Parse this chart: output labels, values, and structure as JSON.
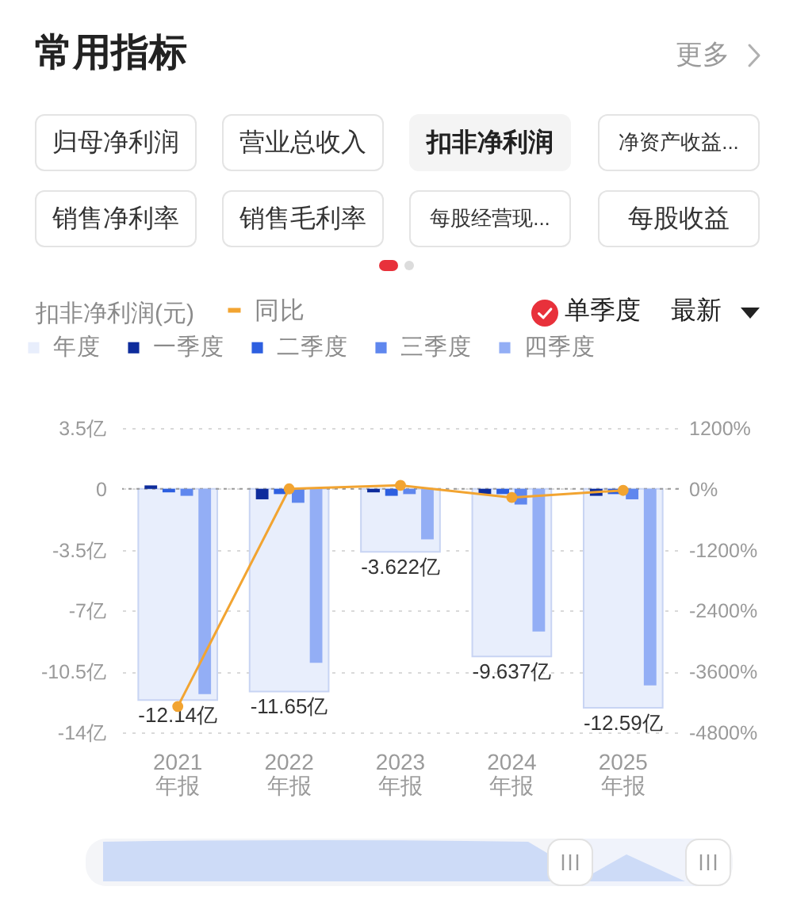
{
  "chart_data": {
    "type": "bar",
    "title": "常用指标",
    "ylabel": "扣非净利润(元)",
    "annotations": [
      "更多",
      "归母净利润",
      "营业总收入",
      "扣非净利润",
      "净资产收益...",
      "销售净利率",
      "销售毛利率",
      "每股经营现...",
      "每股收益",
      "单季度",
      "最新"
    ],
    "categories": [
      "2021\n年报",
      "2022\n年报",
      "2023\n年报",
      "2024\n年报",
      "2025\n年报"
    ],
    "series": [
      {
        "name": "年度",
        "color": "#e8eefc",
        "values": [
          -12.14,
          -11.65,
          -3.622,
          -9.637,
          -12.59
        ],
        "value_labels": [
          "-12.14亿",
          "-11.65亿",
          "-3.622亿",
          "-9.637亿",
          "-12.59亿"
        ]
      },
      {
        "name": "一季度",
        "color": "#0e2c9c",
        "values": [
          0.2,
          -0.6,
          -0.2,
          -0.3,
          -0.4
        ]
      },
      {
        "name": "二季度",
        "color": "#2d5fe0",
        "values": [
          -0.2,
          -0.3,
          -0.4,
          -0.3,
          -0.3
        ]
      },
      {
        "name": "三季度",
        "color": "#5f87ee",
        "values": [
          -0.4,
          -0.8,
          -0.3,
          -0.9,
          -0.6
        ]
      },
      {
        "name": "四季度",
        "color": "#93aef5",
        "values": [
          -11.8,
          -10.0,
          -2.9,
          -8.2,
          -11.3
        ]
      },
      {
        "name": "同比",
        "type": "line",
        "axis": "y2",
        "color": "#f2a431",
        "values": [
          -4290,
          0,
          70,
          -170,
          -30
        ]
      }
    ],
    "ylim": [
      -14,
      3.5
    ],
    "yticks": [
      {
        "value": 3.5,
        "label": "3.5亿"
      },
      0,
      {
        "value": -3.5,
        "label": "-3.5亿"
      },
      {
        "value": -7,
        "label": "-7亿"
      },
      {
        "value": -10.5,
        "label": "-10.5亿"
      },
      {
        "value": -14,
        "label": "-14亿"
      }
    ],
    "y2lim": [
      -4800,
      1200
    ],
    "y2ticks": [
      {
        "value": 1200,
        "label": "1200%"
      },
      {
        "value": 0,
        "label": "0%"
      },
      {
        "value": -1200,
        "label": "-1200%"
      },
      {
        "value": -2400,
        "label": "-2400%"
      },
      {
        "value": -3600,
        "label": "-3600%"
      },
      {
        "value": -4800,
        "label": "-4800%"
      }
    ],
    "ref_lines": [
      {
        "axis": "y",
        "value": 0,
        "color": "#9a9a9a",
        "line_style": "dotted"
      }
    ],
    "grid": "y",
    "legend": "top",
    "marker": "circle"
  }
}
